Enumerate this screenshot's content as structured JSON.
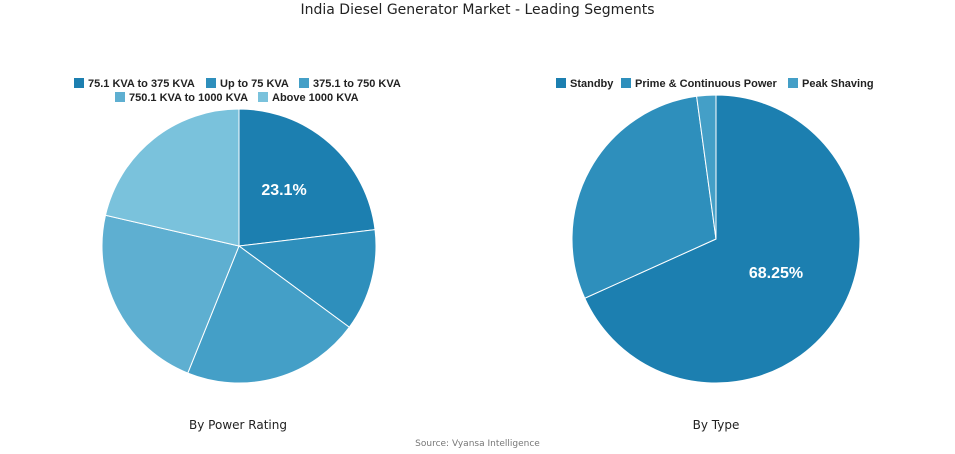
{
  "title": "India Diesel Generator Market - Leading Segments",
  "source": "Source: Vyansa Intelligence",
  "chart_data": [
    {
      "type": "pie",
      "caption": "By Power Rating",
      "unit": "%",
      "slices": [
        {
          "name": "75.1 KVA to 375 KVA",
          "value": 23.1,
          "color": "#1c7fb0",
          "label": "23.1%"
        },
        {
          "name": "Up to 75 KVA",
          "value": 12.0,
          "color": "#2e8fbc",
          "label": ""
        },
        {
          "name": "375.1 to 750 KVA",
          "value": 21.0,
          "color": "#449fc7",
          "label": ""
        },
        {
          "name": "750.1 KVA to 1000 KVA",
          "value": 22.5,
          "color": "#5eafd1",
          "label": ""
        },
        {
          "name": "Above 1000 KVA",
          "value": 21.4,
          "color": "#7ac2dc",
          "label": ""
        }
      ]
    },
    {
      "type": "pie",
      "caption": "By Type",
      "unit": "%",
      "slices": [
        {
          "name": "Standby",
          "value": 68.25,
          "color": "#1c7fb0",
          "label": "68.25%"
        },
        {
          "name": "Prime & Continuous Power",
          "value": 29.6,
          "color": "#2e8fbc",
          "label": ""
        },
        {
          "name": "Peak Shaving",
          "value": 2.15,
          "color": "#449fc7",
          "label": ""
        }
      ]
    }
  ]
}
